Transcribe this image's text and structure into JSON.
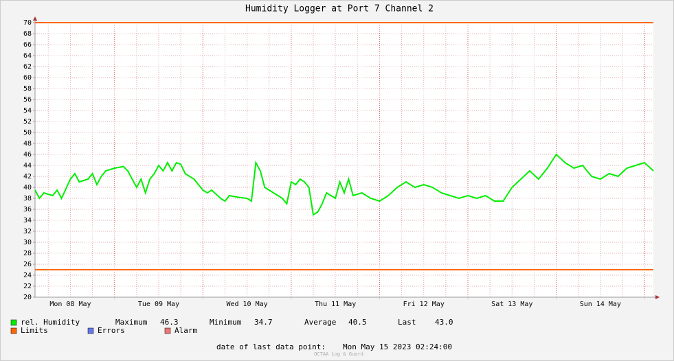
{
  "chart_data": {
    "type": "line",
    "title": "Humidity Logger at Port 7 Channel 2",
    "x": [
      0.1,
      0.15,
      0.2,
      0.3,
      0.35,
      0.4,
      0.5,
      0.55,
      0.6,
      0.7,
      0.75,
      0.8,
      0.85,
      0.9,
      1.0,
      1.1,
      1.15,
      1.2,
      1.25,
      1.3,
      1.35,
      1.4,
      1.45,
      1.5,
      1.55,
      1.6,
      1.65,
      1.7,
      1.75,
      1.8,
      1.9,
      2.0,
      2.05,
      2.1,
      2.2,
      2.25,
      2.3,
      2.4,
      2.5,
      2.55,
      2.6,
      2.65,
      2.7,
      2.8,
      2.9,
      2.95,
      3.0,
      3.05,
      3.1,
      3.15,
      3.2,
      3.25,
      3.3,
      3.35,
      3.4,
      3.5,
      3.55,
      3.6,
      3.65,
      3.7,
      3.8,
      3.9,
      4.0,
      4.1,
      4.2,
      4.3,
      4.4,
      4.5,
      4.6,
      4.7,
      4.8,
      4.9,
      5.0,
      5.1,
      5.2,
      5.3,
      5.4,
      5.5,
      5.6,
      5.7,
      5.8,
      5.9,
      6.0,
      6.1,
      6.2,
      6.3,
      6.4,
      6.5,
      6.6,
      6.7,
      6.8,
      6.9,
      7.0,
      7.1
    ],
    "series": [
      {
        "name": "rel. Humidity",
        "color": "#00ee00",
        "values": [
          39.5,
          38,
          39,
          38.5,
          39.5,
          38,
          41.5,
          42.5,
          41,
          41.5,
          42.5,
          40.5,
          42,
          43,
          43.5,
          43.8,
          43,
          41.5,
          40,
          41.5,
          39,
          41.5,
          42.5,
          44,
          43,
          44.5,
          43,
          44.5,
          44.2,
          42.5,
          41.5,
          39.5,
          39,
          39.5,
          38,
          37.5,
          38.5,
          38.2,
          38,
          37.5,
          44.5,
          43,
          40,
          39,
          38,
          37,
          41,
          40.5,
          41.5,
          41,
          40,
          35,
          35.5,
          37,
          39,
          38,
          41,
          39,
          41.5,
          38.5,
          39,
          38,
          37.5,
          38.5,
          40,
          41,
          40,
          40.5,
          40,
          39,
          38.5,
          38,
          38.5,
          38,
          38.5,
          37.5,
          37.5,
          40,
          41.5,
          43,
          41.5,
          43.5,
          46,
          44.5,
          43.5,
          44,
          42,
          41.5,
          42.5,
          42,
          43.5,
          44,
          44.5,
          43
        ]
      }
    ],
    "limits": {
      "name": "Limits",
      "color": "#ff6600",
      "values": [
        25,
        70
      ]
    },
    "legend_extra": [
      {
        "name": "Errors",
        "color": "#6677ee"
      },
      {
        "name": "Alarm",
        "color": "#ee7777"
      }
    ],
    "stats": [
      {
        "name": "Maximum",
        "value": 46.3
      },
      {
        "name": "Minimum",
        "value": 34.7
      },
      {
        "name": "Average",
        "value": 40.5
      },
      {
        "name": "Last",
        "value": {
          "value": 43,
          "label": "43.0"
        }
      }
    ],
    "footer_label": "date of last data point:",
    "footer_value": "Mon May 15 2023 02:24:00",
    "watermark": "OCTAA Log & Guard",
    "xlim": [
      0.1,
      7.1
    ],
    "xticks": [
      {
        "value": 0.5,
        "label": "Mon 08 May"
      },
      {
        "value": 1.5,
        "label": "Tue 09 May"
      },
      {
        "value": 2.5,
        "label": "Wed 10 May"
      },
      {
        "value": 3.5,
        "label": "Thu 11 May"
      },
      {
        "value": 4.5,
        "label": "Fri 12 May"
      },
      {
        "value": 5.5,
        "label": "Sat 13 May"
      },
      {
        "value": 6.5,
        "label": "Sun 14 May"
      }
    ],
    "xmajor": [
      1,
      2,
      3,
      4,
      5,
      6,
      7
    ],
    "xminor": [
      0.25,
      0.5,
      0.75,
      1.25,
      1.5,
      1.75,
      2.25,
      2.5,
      2.75,
      3.25,
      3.5,
      3.75,
      4.25,
      4.5,
      4.75,
      5.25,
      5.5,
      5.75,
      6.25,
      6.5,
      6.75,
      7.0
    ],
    "ylim": [
      20,
      70
    ],
    "yticks": [
      20,
      22,
      24,
      26,
      28,
      30,
      32,
      34,
      36,
      38,
      40,
      42,
      44,
      46,
      48,
      50,
      52,
      54,
      56,
      58,
      60,
      62,
      64,
      66,
      68,
      70
    ],
    "grid": true
  }
}
